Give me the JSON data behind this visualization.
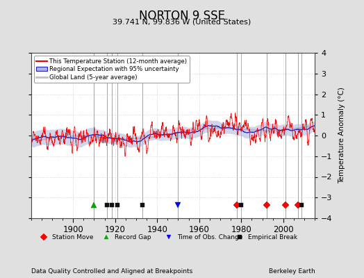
{
  "title": "NORTON 9 SSE",
  "subtitle": "39.741 N, 99.836 W (United States)",
  "ylabel": "Temperature Anomaly (°C)",
  "footer_left": "Data Quality Controlled and Aligned at Breakpoints",
  "footer_right": "Berkeley Earth",
  "xlim": [
    1880,
    2015
  ],
  "ylim": [
    -4,
    4
  ],
  "yticks": [
    -4,
    -3,
    -2,
    -1,
    0,
    1,
    2,
    3,
    4
  ],
  "xticks": [
    1900,
    1920,
    1940,
    1960,
    1980,
    2000
  ],
  "bg_color": "#e0e0e0",
  "plot_bg_color": "#ffffff",
  "station_moves": [
    1978.0,
    1992.0,
    2001.0,
    2007.0
  ],
  "record_gaps": [
    1910.0
  ],
  "time_of_obs_changes": [
    1950.0
  ],
  "empirical_breaks": [
    1916.0,
    1918.5,
    1921.0,
    1933.0,
    1980.0,
    2008.5
  ],
  "marker_y": -3.35,
  "legend_labels": [
    "This Temperature Station (12-month average)",
    "Regional Expectation with 95% uncertainty",
    "Global Land (5-year average)"
  ]
}
